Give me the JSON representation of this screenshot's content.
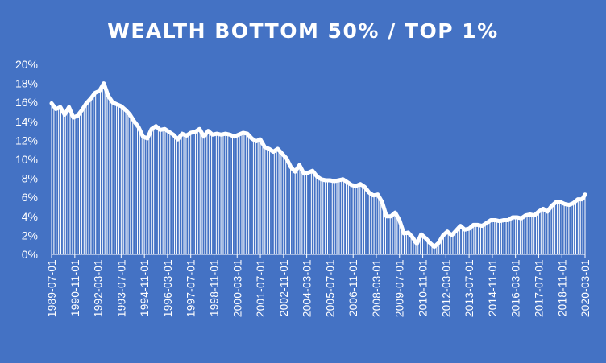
{
  "chart_data": {
    "type": "area",
    "title": "WEALTH BOTTOM 50% / TOP 1%",
    "xlabel": "",
    "ylabel": "",
    "ylim": [
      0,
      0.2
    ],
    "yticks": [
      "0%",
      "2%",
      "4%",
      "6%",
      "8%",
      "10%",
      "12%",
      "14%",
      "16%",
      "18%",
      "20%"
    ],
    "xticks": [
      "1989-07-01",
      "1990-11-01",
      "1992-03-01",
      "1993-07-01",
      "1994-11-01",
      "1996-03-01",
      "1997-07-01",
      "1998-11-01",
      "2000-03-01",
      "2001-07-01",
      "2002-11-01",
      "2004-03-01",
      "2005-07-01",
      "2006-11-01",
      "2008-03-01",
      "2009-07-01",
      "2010-11-01",
      "2012-03-01",
      "2013-07-01",
      "2014-11-01",
      "2016-03-01",
      "2017-07-01",
      "2018-11-01",
      "2020-03-01"
    ],
    "x_start": "1989-07-01",
    "x_end": "2020-03-01",
    "grid": false,
    "legend": "none",
    "colors": {
      "background": "#4472C4",
      "series": "#FFFFFF"
    },
    "series": [
      {
        "name": "",
        "points": [
          [
            "1989-07-01",
            0.159
          ],
          [
            "1989-10-01",
            0.153
          ],
          [
            "1990-01-01",
            0.155
          ],
          [
            "1990-04-01",
            0.147
          ],
          [
            "1990-07-01",
            0.155
          ],
          [
            "1990-10-01",
            0.144
          ],
          [
            "1991-01-01",
            0.146
          ],
          [
            "1991-04-01",
            0.152
          ],
          [
            "1991-07-01",
            0.159
          ],
          [
            "1991-10-01",
            0.164
          ],
          [
            "1992-01-01",
            0.17
          ],
          [
            "1992-04-01",
            0.172
          ],
          [
            "1992-07-01",
            0.18
          ],
          [
            "1992-10-01",
            0.167
          ],
          [
            "1993-01-01",
            0.16
          ],
          [
            "1993-04-01",
            0.158
          ],
          [
            "1993-07-01",
            0.156
          ],
          [
            "1993-10-01",
            0.152
          ],
          [
            "1994-01-01",
            0.147
          ],
          [
            "1994-04-01",
            0.14
          ],
          [
            "1994-07-01",
            0.134
          ],
          [
            "1994-10-01",
            0.124
          ],
          [
            "1995-01-01",
            0.122
          ],
          [
            "1995-04-01",
            0.132
          ],
          [
            "1995-07-01",
            0.135
          ],
          [
            "1995-10-01",
            0.131
          ],
          [
            "1996-01-01",
            0.132
          ],
          [
            "1996-04-01",
            0.129
          ],
          [
            "1996-07-01",
            0.126
          ],
          [
            "1996-10-01",
            0.121
          ],
          [
            "1997-01-01",
            0.127
          ],
          [
            "1997-04-01",
            0.125
          ],
          [
            "1997-07-01",
            0.128
          ],
          [
            "1997-10-01",
            0.129
          ],
          [
            "1998-01-01",
            0.132
          ],
          [
            "1998-04-01",
            0.124
          ],
          [
            "1998-07-01",
            0.13
          ],
          [
            "1998-10-01",
            0.126
          ],
          [
            "1999-01-01",
            0.127
          ],
          [
            "1999-04-01",
            0.126
          ],
          [
            "1999-07-01",
            0.127
          ],
          [
            "1999-10-01",
            0.126
          ],
          [
            "2000-01-01",
            0.124
          ],
          [
            "2000-04-01",
            0.126
          ],
          [
            "2000-07-01",
            0.128
          ],
          [
            "2000-10-01",
            0.127
          ],
          [
            "2001-01-01",
            0.122
          ],
          [
            "2001-04-01",
            0.119
          ],
          [
            "2001-07-01",
            0.121
          ],
          [
            "2001-10-01",
            0.113
          ],
          [
            "2002-01-01",
            0.111
          ],
          [
            "2002-04-01",
            0.108
          ],
          [
            "2002-07-01",
            0.111
          ],
          [
            "2002-10-01",
            0.106
          ],
          [
            "2003-01-01",
            0.101
          ],
          [
            "2003-04-01",
            0.092
          ],
          [
            "2003-07-01",
            0.087
          ],
          [
            "2003-10-01",
            0.094
          ],
          [
            "2004-01-01",
            0.085
          ],
          [
            "2004-04-01",
            0.086
          ],
          [
            "2004-07-01",
            0.088
          ],
          [
            "2004-10-01",
            0.082
          ],
          [
            "2005-01-01",
            0.079
          ],
          [
            "2005-04-01",
            0.078
          ],
          [
            "2005-07-01",
            0.078
          ],
          [
            "2005-10-01",
            0.077
          ],
          [
            "2006-01-01",
            0.078
          ],
          [
            "2006-04-01",
            0.079
          ],
          [
            "2006-07-01",
            0.076
          ],
          [
            "2006-10-01",
            0.073
          ],
          [
            "2007-01-01",
            0.072
          ],
          [
            "2007-04-01",
            0.074
          ],
          [
            "2007-07-01",
            0.071
          ],
          [
            "2007-10-01",
            0.065
          ],
          [
            "2008-01-01",
            0.062
          ],
          [
            "2008-04-01",
            0.063
          ],
          [
            "2008-07-01",
            0.055
          ],
          [
            "2008-10-01",
            0.04
          ],
          [
            "2009-01-01",
            0.04
          ],
          [
            "2009-04-01",
            0.044
          ],
          [
            "2009-07-01",
            0.036
          ],
          [
            "2009-10-01",
            0.022
          ],
          [
            "2010-01-01",
            0.023
          ],
          [
            "2010-04-01",
            0.018
          ],
          [
            "2010-07-01",
            0.011
          ],
          [
            "2010-10-01",
            0.021
          ],
          [
            "2011-01-01",
            0.017
          ],
          [
            "2011-04-01",
            0.012
          ],
          [
            "2011-07-01",
            0.008
          ],
          [
            "2011-10-01",
            0.012
          ],
          [
            "2012-01-01",
            0.02
          ],
          [
            "2012-04-01",
            0.024
          ],
          [
            "2012-07-01",
            0.02
          ],
          [
            "2012-10-01",
            0.025
          ],
          [
            "2013-01-01",
            0.03
          ],
          [
            "2013-04-01",
            0.026
          ],
          [
            "2013-07-01",
            0.027
          ],
          [
            "2013-10-01",
            0.031
          ],
          [
            "2014-01-01",
            0.031
          ],
          [
            "2014-04-01",
            0.03
          ],
          [
            "2014-07-01",
            0.033
          ],
          [
            "2014-10-01",
            0.036
          ],
          [
            "2015-01-01",
            0.036
          ],
          [
            "2015-04-01",
            0.035
          ],
          [
            "2015-07-01",
            0.036
          ],
          [
            "2015-10-01",
            0.036
          ],
          [
            "2016-01-01",
            0.039
          ],
          [
            "2016-04-01",
            0.039
          ],
          [
            "2016-07-01",
            0.038
          ],
          [
            "2016-10-01",
            0.041
          ],
          [
            "2017-01-01",
            0.042
          ],
          [
            "2017-04-01",
            0.041
          ],
          [
            "2017-07-01",
            0.045
          ],
          [
            "2017-10-01",
            0.048
          ],
          [
            "2018-01-01",
            0.045
          ],
          [
            "2018-04-01",
            0.051
          ],
          [
            "2018-07-01",
            0.055
          ],
          [
            "2018-10-01",
            0.055
          ],
          [
            "2019-01-01",
            0.053
          ],
          [
            "2019-04-01",
            0.052
          ],
          [
            "2019-07-01",
            0.054
          ],
          [
            "2019-10-01",
            0.058
          ],
          [
            "2020-01-01",
            0.058
          ],
          [
            "2020-03-01",
            0.063
          ]
        ]
      }
    ]
  }
}
